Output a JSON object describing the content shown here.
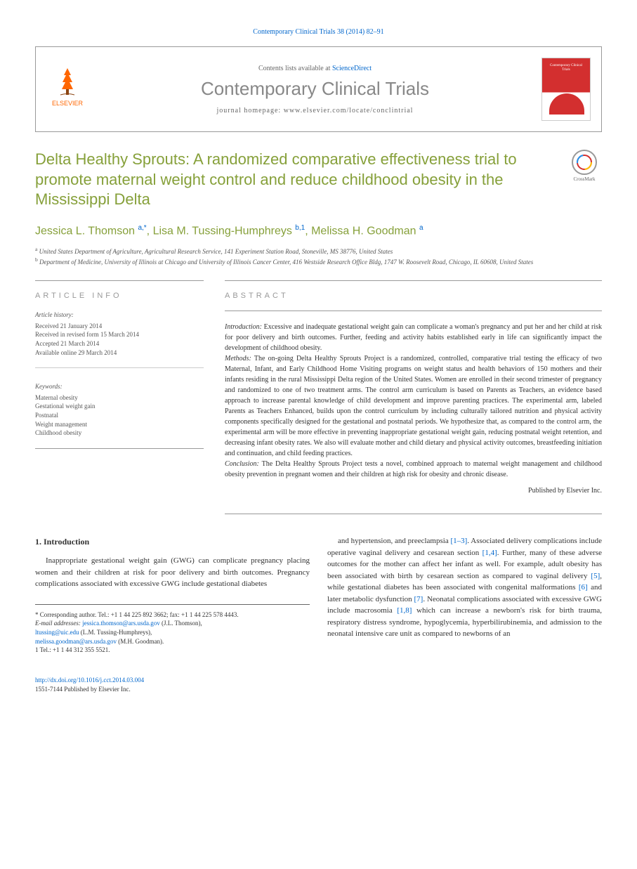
{
  "top_citation": "Contemporary Clinical Trials 38 (2014) 82–91",
  "header": {
    "contents_prefix": "Contents lists available at ",
    "contents_link": "ScienceDirect",
    "journal_name": "Contemporary Clinical Trials",
    "homepage_prefix": "journal homepage: ",
    "homepage_url": "www.elsevier.com/locate/conclintrial",
    "publisher_logo": "ELSEVIER",
    "cover_text": "Contemporary Clinical Trials"
  },
  "crossmark_label": "CrossMark",
  "title": "Delta Healthy Sprouts: A randomized comparative effectiveness trial to promote maternal weight control and reduce childhood obesity in the Mississippi Delta",
  "authors_html": "Jessica L. Thomson <sup>a,*</sup>, Lisa M. Tussing-Humphreys <sup>b,1</sup>, Melissa H. Goodman <sup>a</sup>",
  "affiliations": [
    "a United States Department of Agriculture, Agricultural Research Service, 141 Experiment Station Road, Stoneville, MS 38776, United States",
    "b Department of Medicine, University of Illinois at Chicago and University of Illinois Cancer Center, 416 Westside Research Office Bldg, 1747 W. Roosevelt Road, Chicago, IL 60608, United States"
  ],
  "article_info": {
    "heading": "ARTICLE INFO",
    "history_label": "Article history:",
    "history": [
      "Received 21 January 2014",
      "Received in revised form 15 March 2014",
      "Accepted 21 March 2014",
      "Available online 29 March 2014"
    ],
    "keywords_label": "Keywords:",
    "keywords": [
      "Maternal obesity",
      "Gestational weight gain",
      "Postnatal",
      "Weight management",
      "Childhood obesity"
    ]
  },
  "abstract": {
    "heading": "ABSTRACT",
    "intro_label": "Introduction:",
    "intro": " Excessive and inadequate gestational weight gain can complicate a woman's pregnancy and put her and her child at risk for poor delivery and birth outcomes. Further, feeding and activity habits established early in life can significantly impact the development of childhood obesity.",
    "methods_label": "Methods:",
    "methods": " The on-going Delta Healthy Sprouts Project is a randomized, controlled, comparative trial testing the efficacy of two Maternal, Infant, and Early Childhood Home Visiting programs on weight status and health behaviors of 150 mothers and their infants residing in the rural Mississippi Delta region of the United States. Women are enrolled in their second trimester of pregnancy and randomized to one of two treatment arms. The control arm curriculum is based on Parents as Teachers, an evidence based approach to increase parental knowledge of child development and improve parenting practices. The experimental arm, labeled Parents as Teachers Enhanced, builds upon the control curriculum by including culturally tailored nutrition and physical activity components specifically designed for the gestational and postnatal periods. We hypothesize that, as compared to the control arm, the experimental arm will be more effective in preventing inappropriate gestational weight gain, reducing postnatal weight retention, and decreasing infant obesity rates. We also will evaluate mother and child dietary and physical activity outcomes, breastfeeding initiation and continuation, and child feeding practices.",
    "conclusion_label": "Conclusion:",
    "conclusion": " The Delta Healthy Sprouts Project tests a novel, combined approach to maternal weight management and childhood obesity prevention in pregnant women and their children at high risk for obesity and chronic disease.",
    "publisher": "Published by Elsevier Inc."
  },
  "body": {
    "intro_heading": "1. Introduction",
    "col1_p1": "Inappropriate gestational weight gain (GWG) can complicate pregnancy placing women and their children at risk for poor delivery and birth outcomes. Pregnancy complications associated with excessive GWG include gestational diabetes",
    "col2_p1_a": "and hypertension, and preeclampsia ",
    "col2_ref1": "[1–3]",
    "col2_p1_b": ". Associated delivery complications include operative vaginal delivery and cesarean section ",
    "col2_ref2": "[1,4]",
    "col2_p1_c": ". Further, many of these adverse outcomes for the mother can affect her infant as well. For example, adult obesity has been associated with birth by cesarean section as compared to vaginal delivery ",
    "col2_ref3": "[5]",
    "col2_p1_d": ", while gestational diabetes has been associated with congenital malformations ",
    "col2_ref4": "[6]",
    "col2_p1_e": " and later metabolic dysfunction ",
    "col2_ref5": "[7]",
    "col2_p1_f": ". Neonatal complications associated with excessive GWG include macrosomia ",
    "col2_ref6": "[1,8]",
    "col2_p1_g": " which can increase a newborn's risk for birth trauma, respiratory distress syndrome, hypoglycemia, hyperbilirubinemia, and admission to the neonatal intensive care unit as compared to newborns of an"
  },
  "footnotes": {
    "corr": "* Corresponding author. Tel.: +1 1 44 225 892 3662; fax: +1 1 44 225 578 4443.",
    "email_label": "E-mail addresses: ",
    "email1": "jessica.thomson@ars.usda.gov",
    "email1_who": " (J.L. Thomson), ",
    "email2": "ltussing@uic.edu",
    "email2_who": " (L.M. Tussing-Humphreys), ",
    "email3": "melissa.goodman@ars.usda.gov",
    "email3_who": " (M.H. Goodman).",
    "note1": "1 Tel.: +1 1 44 312 355 5521."
  },
  "doi": {
    "url": "http://dx.doi.org/10.1016/j.cct.2014.03.004",
    "issn": "1551-7144 Published by Elsevier Inc."
  },
  "colors": {
    "accent_green": "#86a03a",
    "link_blue": "#0066cc",
    "elsevier_orange": "#ff6600",
    "cover_red": "#d32f2f",
    "gray_text": "#888"
  }
}
